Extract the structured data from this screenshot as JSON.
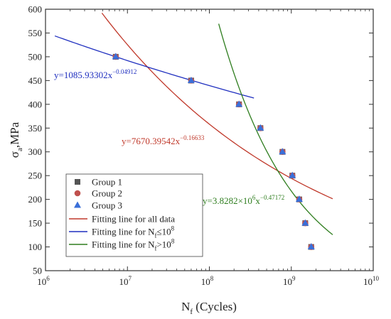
{
  "chart_data": {
    "type": "scatter",
    "xscale": "log",
    "xlim": [
      1000000,
      10000000000
    ],
    "ylim": [
      50,
      600
    ],
    "xticks": [
      {
        "base": "10",
        "exp": "6",
        "value": 1000000
      },
      {
        "base": "10",
        "exp": "7",
        "value": 10000000
      },
      {
        "base": "10",
        "exp": "8",
        "value": 100000000
      },
      {
        "base": "10",
        "exp": "9",
        "value": 1000000000
      },
      {
        "base": "10",
        "exp": "10",
        "value": 10000000000
      }
    ],
    "yticks": [
      "50",
      "100",
      "150",
      "200",
      "250",
      "300",
      "350",
      "400",
      "450",
      "500",
      "550",
      "600"
    ],
    "xlabel": {
      "main": "N",
      "sub": "f",
      "rest": " (Cycles)"
    },
    "ylabel": {
      "main": "σ",
      "sub": "a",
      "rest": ",MPa"
    },
    "series": [
      {
        "name": "Group 1",
        "marker": "square",
        "color": "#555555",
        "points": [
          [
            7200000,
            500
          ],
          [
            60000000,
            450
          ],
          [
            230000000,
            400
          ],
          [
            420000000,
            350
          ],
          [
            780000000,
            300
          ],
          [
            1030000000,
            250
          ],
          [
            1250000000,
            200
          ],
          [
            1480000000,
            150
          ],
          [
            1750000000,
            100
          ]
        ]
      },
      {
        "name": "Group 2",
        "marker": "circle",
        "color": "#c0504d",
        "points": [
          [
            7200000,
            500
          ],
          [
            60000000,
            450
          ],
          [
            230000000,
            400
          ],
          [
            420000000,
            350
          ],
          [
            780000000,
            300
          ],
          [
            1030000000,
            250
          ],
          [
            1250000000,
            200
          ],
          [
            1480000000,
            150
          ],
          [
            1750000000,
            100
          ]
        ]
      },
      {
        "name": "Group 3",
        "marker": "triangle",
        "color": "#3a6fd8",
        "points": [
          [
            7200000,
            500
          ],
          [
            60000000,
            450
          ],
          [
            230000000,
            400
          ],
          [
            420000000,
            350
          ],
          [
            780000000,
            300
          ],
          [
            1030000000,
            250
          ],
          [
            1250000000,
            200
          ],
          [
            1480000000,
            150
          ],
          [
            1750000000,
            100
          ]
        ]
      }
    ],
    "fits": [
      {
        "legend": "Fitting line for all data",
        "legend_sub": "",
        "legend_sup": "",
        "legend_tail": "",
        "color": "#c0392b",
        "a": 7670.39542,
        "b": -0.16633,
        "xrange": [
          4500000,
          3200000000
        ],
        "eq_prefix": "y=7670.39542x",
        "eq_sup": "−0.16633"
      },
      {
        "legend": "Fitting line for N",
        "legend_sub": "f",
        "legend_sup": "",
        "legend_tail": "≤10",
        "legend_tail_sup": "8",
        "color": "#1f2fbf",
        "a": 1085.93302,
        "b": -0.04912,
        "xrange": [
          1300000,
          350000000
        ],
        "eq_prefix": "y=1085.93302x",
        "eq_sup": "−0.04912"
      },
      {
        "legend": "Fitting line for N",
        "legend_sub": "f",
        "legend_sup": "",
        "legend_tail": ">10",
        "legend_tail_sup": "8",
        "color": "#2e7d1e",
        "a": 3828200,
        "b": -0.47172,
        "xrange": [
          130000000,
          3200000000
        ],
        "eq_prefix": "y=3.8282×10",
        "eq_mid_sup": "6",
        "eq_mid": "x",
        "eq_sup": "−0.47172"
      }
    ]
  }
}
